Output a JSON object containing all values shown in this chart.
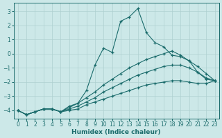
{
  "xlabel": "Humidex (Indice chaleur)",
  "bg_color": "#cce8e8",
  "line_color": "#1a6b6b",
  "grid_color": "#aed0d0",
  "xlim": [
    -0.5,
    23.5
  ],
  "ylim": [
    -4.6,
    3.6
  ],
  "yticks": [
    -4,
    -3,
    -2,
    -1,
    0,
    1,
    2,
    3
  ],
  "xticks": [
    0,
    1,
    2,
    3,
    4,
    5,
    6,
    7,
    8,
    9,
    10,
    11,
    12,
    13,
    14,
    15,
    16,
    17,
    18,
    19,
    20,
    21,
    22,
    23
  ],
  "lines": [
    {
      "x": [
        0,
        1,
        2,
        3,
        4,
        5,
        6,
        7,
        8,
        9,
        10,
        11,
        12,
        13,
        14,
        15,
        16,
        17,
        18,
        19,
        20,
        21,
        22,
        23
      ],
      "y": [
        -4.0,
        -4.3,
        -4.1,
        -3.9,
        -3.9,
        -4.1,
        -3.7,
        -3.5,
        -2.6,
        -0.8,
        0.4,
        0.1,
        2.3,
        2.6,
        3.2,
        1.5,
        0.8,
        0.5,
        -0.1,
        -0.2,
        -0.5,
        -1.3,
        -1.8,
        -1.9
      ]
    },
    {
      "x": [
        0,
        1,
        2,
        3,
        4,
        5,
        6,
        7,
        8,
        9,
        10,
        11,
        12,
        13,
        14,
        15,
        16,
        17,
        18,
        19,
        20,
        21,
        22,
        23
      ],
      "y": [
        -4.0,
        -4.3,
        -4.1,
        -3.9,
        -3.9,
        -4.1,
        -3.8,
        -3.5,
        -3.1,
        -2.7,
        -2.2,
        -1.8,
        -1.4,
        -1.0,
        -0.7,
        -0.4,
        -0.2,
        0.0,
        0.2,
        -0.1,
        -0.5,
        -0.9,
        -1.4,
        -1.9
      ]
    },
    {
      "x": [
        0,
        1,
        2,
        3,
        4,
        5,
        6,
        7,
        8,
        9,
        10,
        11,
        12,
        13,
        14,
        15,
        16,
        17,
        18,
        19,
        20,
        21,
        22,
        23
      ],
      "y": [
        -4.0,
        -4.3,
        -4.1,
        -3.9,
        -3.9,
        -4.1,
        -3.9,
        -3.7,
        -3.4,
        -3.1,
        -2.7,
        -2.4,
        -2.1,
        -1.8,
        -1.5,
        -1.3,
        -1.1,
        -0.9,
        -0.8,
        -0.8,
        -1.0,
        -1.3,
        -1.7,
        -1.9
      ]
    },
    {
      "x": [
        0,
        1,
        2,
        3,
        4,
        5,
        6,
        7,
        8,
        9,
        10,
        11,
        12,
        13,
        14,
        15,
        16,
        17,
        18,
        19,
        20,
        21,
        22,
        23
      ],
      "y": [
        -4.0,
        -4.3,
        -4.1,
        -3.9,
        -3.9,
        -4.1,
        -4.0,
        -3.9,
        -3.6,
        -3.4,
        -3.2,
        -3.0,
        -2.8,
        -2.6,
        -2.4,
        -2.2,
        -2.1,
        -2.0,
        -1.9,
        -1.9,
        -2.0,
        -2.1,
        -2.1,
        -1.9
      ]
    }
  ]
}
